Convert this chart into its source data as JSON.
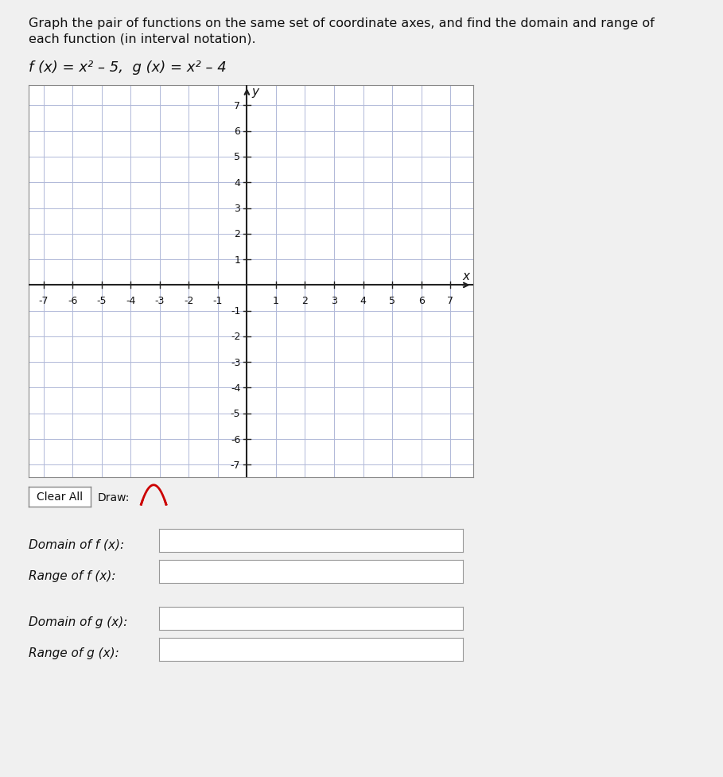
{
  "title_line1": "Graph the pair of functions on the same set of coordinate axes, and find the domain and range of",
  "title_line2": "each function (in interval notation).",
  "formula_text": "f (x) = x² – 5,  g (x) = x² – 4",
  "x_min": -7,
  "x_max": 7,
  "y_min": -7,
  "y_max": 7,
  "x_label": "x",
  "y_label": "y",
  "grid_color": "#b0b8d8",
  "axis_color": "#222222",
  "background_color": "#f0f0f0",
  "plot_bg_color": "#ffffff",
  "label_domain_f": "Domain of f (x):",
  "label_range_f": "Range of f (x):",
  "label_domain_g": "Domain of g (x):",
  "label_range_g": "Range of g (x):",
  "clear_all_text": "Clear All",
  "draw_text": "Draw:",
  "font_size_title": 11.5,
  "font_size_formula": 13,
  "font_size_axis": 9,
  "font_size_label": 11
}
